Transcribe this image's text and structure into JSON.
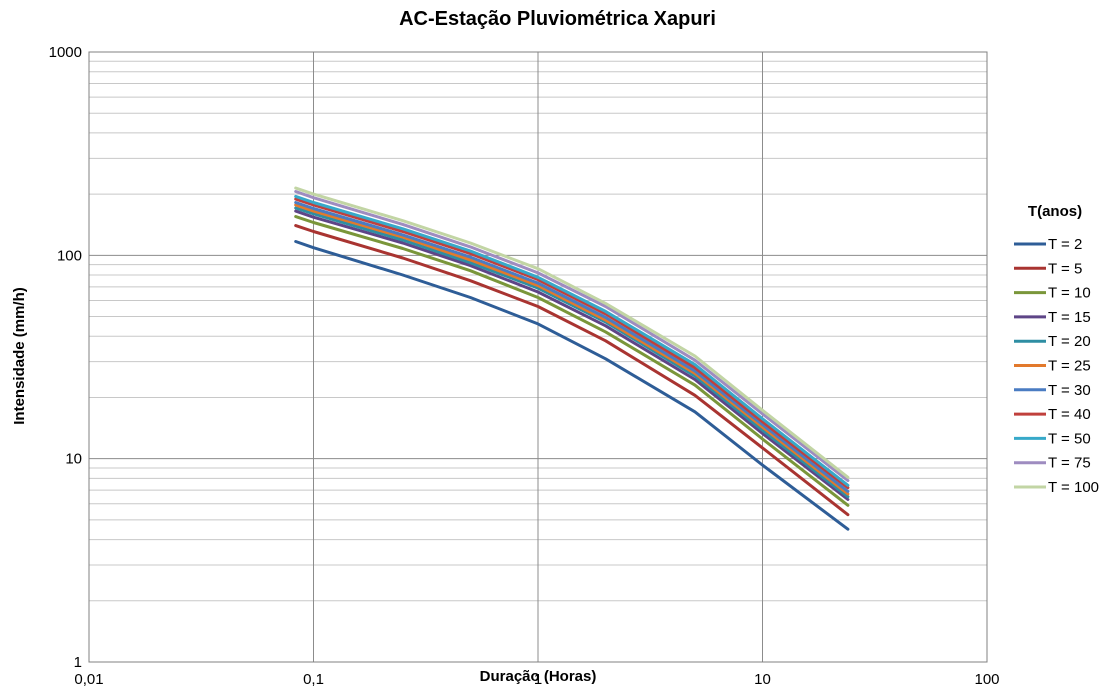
{
  "chart_data": {
    "type": "line",
    "title": "AC-Estação Pluviométrica Xapuri",
    "xlabel": "Duração (Horas)",
    "ylabel": "Intensidade (mm/h)",
    "xscale": "log",
    "yscale": "log",
    "xlim": [
      0.01,
      100
    ],
    "ylim": [
      1,
      1000
    ],
    "x_tick_labels": [
      "0,01",
      "0,1",
      "1",
      "10",
      "100"
    ],
    "y_tick_labels": [
      "1",
      "10",
      "100",
      "1000"
    ],
    "grid": true,
    "legend_title": "T(anos)",
    "legend_position": "right",
    "x": [
      0.0833,
      0.1,
      0.25,
      0.5,
      1,
      2,
      5,
      10,
      24
    ],
    "series": [
      {
        "name": "T = 2",
        "color": "#2E5D97",
        "values": [
          117,
          109,
          80,
          62,
          46,
          31,
          17,
          9.3,
          4.5
        ]
      },
      {
        "name": "T = 5",
        "color": "#A93431",
        "values": [
          140,
          131,
          97,
          75,
          56,
          38,
          20.5,
          11.3,
          5.3
        ]
      },
      {
        "name": "T = 10",
        "color": "#7A963A",
        "values": [
          155,
          145,
          108,
          84,
          62,
          42,
          23,
          12.5,
          5.9
        ]
      },
      {
        "name": "T = 15",
        "color": "#5E4587",
        "values": [
          165,
          154,
          115,
          89,
          66,
          45,
          24.5,
          13.3,
          6.3
        ]
      },
      {
        "name": "T = 20",
        "color": "#2E8EA3",
        "values": [
          171,
          160,
          119,
          92,
          69,
          47,
          25.5,
          13.8,
          6.5
        ]
      },
      {
        "name": "T = 25",
        "color": "#E2792C",
        "values": [
          177,
          165,
          123,
          95,
          71,
          48,
          26.3,
          14.3,
          6.7
        ]
      },
      {
        "name": "T = 30",
        "color": "#4A7CC2",
        "values": [
          182,
          170,
          126,
          98,
          73,
          49.5,
          27,
          14.7,
          6.9
        ]
      },
      {
        "name": "T = 40",
        "color": "#C0403C",
        "values": [
          189,
          177,
          131,
          102,
          76,
          51.5,
          28,
          15.2,
          7.2
        ]
      },
      {
        "name": "T = 50",
        "color": "#37A9C9",
        "values": [
          195,
          182,
          135,
          105,
          78,
          53,
          29,
          15.7,
          7.4
        ]
      },
      {
        "name": "T = 75",
        "color": "#9E8CC0",
        "values": [
          206,
          192,
          142,
          110,
          82,
          56,
          30.5,
          16.6,
          7.8
        ]
      },
      {
        "name": "T = 100",
        "color": "#C2D5A4",
        "values": [
          214,
          200,
          148,
          115,
          86,
          58,
          32,
          17.3,
          8.1
        ]
      }
    ]
  }
}
